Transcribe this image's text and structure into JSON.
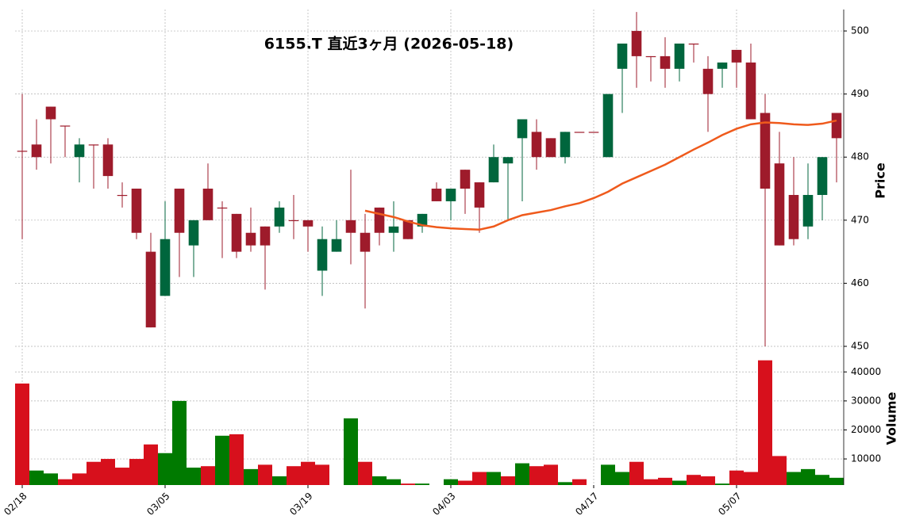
{
  "chart_data": {
    "type": "candlestick",
    "title": "6155.T  直近3ヶ月  (2026-05-18)",
    "categories": [
      "02/18",
      null,
      null,
      null,
      null,
      null,
      null,
      null,
      null,
      null,
      "03/05",
      null,
      null,
      null,
      null,
      null,
      null,
      null,
      null,
      null,
      "03/19",
      null,
      null,
      null,
      null,
      null,
      null,
      null,
      null,
      null,
      "04/03",
      null,
      null,
      null,
      null,
      null,
      null,
      null,
      null,
      null,
      "04/17",
      null,
      null,
      null,
      null,
      null,
      null,
      null,
      null,
      null,
      "05/07",
      null,
      null,
      null,
      null,
      null,
      null,
      null
    ],
    "open": [
      481,
      482,
      488,
      485,
      480,
      482,
      482,
      474,
      475,
      465,
      458,
      475,
      466,
      475,
      472,
      471,
      468,
      469,
      469,
      470,
      470,
      462,
      465,
      470,
      468,
      472,
      468,
      470,
      469,
      475,
      473,
      478,
      476,
      476,
      479,
      483,
      484,
      483,
      480,
      484,
      484,
      480,
      494,
      500,
      496,
      496,
      494,
      498,
      494,
      494,
      497,
      495,
      487,
      479,
      474,
      469,
      474,
      487
    ],
    "high": [
      490,
      486,
      488,
      485,
      483,
      482,
      483,
      476,
      475,
      468,
      473,
      475,
      470,
      479,
      473,
      471,
      472,
      469,
      473,
      474,
      470,
      469,
      470,
      478,
      471,
      472,
      473,
      470,
      471,
      476,
      475,
      478,
      476,
      482,
      480,
      486,
      486,
      483,
      484,
      484,
      484,
      490,
      498,
      503,
      496,
      499,
      498,
      498,
      496,
      495,
      497,
      498,
      490,
      484,
      480,
      479,
      480,
      487
    ],
    "low": [
      467,
      478,
      479,
      480,
      476,
      475,
      475,
      472,
      467,
      453,
      458,
      461,
      461,
      470,
      464,
      464,
      465,
      459,
      468,
      467,
      465,
      458,
      465,
      463,
      456,
      466,
      465,
      467,
      468,
      473,
      470,
      471,
      468,
      476,
      470,
      473,
      478,
      480,
      479,
      484,
      484,
      480,
      487,
      491,
      492,
      491,
      492,
      495,
      484,
      491,
      491,
      486,
      450,
      466,
      466,
      467,
      470,
      476
    ],
    "close": [
      481,
      480,
      486,
      485,
      482,
      482,
      477,
      474,
      468,
      453,
      467,
      468,
      470,
      470,
      472,
      465,
      466,
      466,
      472,
      470,
      469,
      467,
      467,
      468,
      465,
      468,
      469,
      467,
      471,
      473,
      475,
      475,
      472,
      480,
      480,
      486,
      480,
      480,
      484,
      484,
      484,
      490,
      498,
      496,
      496,
      494,
      498,
      498,
      490,
      495,
      495,
      486,
      475,
      466,
      467,
      474,
      480,
      483
    ],
    "up_color": "#00663d",
    "down_color": "#9e1b2b",
    "ma": {
      "color": "#ef5a1c",
      "values": [
        null,
        null,
        null,
        null,
        null,
        null,
        null,
        null,
        null,
        null,
        null,
        null,
        null,
        null,
        null,
        null,
        null,
        null,
        null,
        null,
        null,
        null,
        null,
        null,
        471.5,
        471,
        470.5,
        469.8,
        469.2,
        468.9,
        468.7,
        468.6,
        468.5,
        469,
        470,
        470.8,
        471.2,
        471.6,
        472.2,
        472.7,
        473.5,
        474.5,
        475.8,
        476.8,
        477.8,
        478.8,
        480,
        481.2,
        482.3,
        483.5,
        484.5,
        485.2,
        485.5,
        485.4,
        485.2,
        485.1,
        485.3,
        485.8
      ]
    },
    "ylim": [
      450,
      503.4
    ],
    "yticks": [
      450,
      460,
      470,
      480,
      490,
      500
    ],
    "ylabel": "Price",
    "grid": true,
    "volume": {
      "values": [
        36000,
        6000,
        5000,
        3000,
        5000,
        9000,
        10000,
        7000,
        10000,
        15000,
        12000,
        30000,
        7000,
        7500,
        18000,
        18500,
        6500,
        8000,
        4000,
        7500,
        9000,
        8000,
        1000,
        24000,
        9000,
        4000,
        3000,
        1500,
        1500,
        1000,
        3000,
        2500,
        5500,
        5500,
        4000,
        8500,
        7500,
        8000,
        2000,
        3000,
        1000,
        8000,
        5500,
        9000,
        3000,
        3500,
        2500,
        4500,
        4000,
        1500,
        6000,
        5500,
        44000,
        11000,
        5500,
        6500,
        4500,
        3500
      ],
      "colors": [
        "#d7101c",
        "#007a00",
        "#007a00",
        "#d7101c",
        "#d7101c",
        "#d7101c",
        "#d7101c",
        "#d7101c",
        "#d7101c",
        "#d7101c",
        "#007a00",
        "#007a00",
        "#007a00",
        "#d7101c",
        "#007a00",
        "#d7101c",
        "#007a00",
        "#d7101c",
        "#007a00",
        "#d7101c",
        "#d7101c",
        "#d7101c",
        "#d7101c",
        "#007a00",
        "#d7101c",
        "#007a00",
        "#007a00",
        "#d7101c",
        "#007a00",
        "#007a00",
        "#007a00",
        "#d7101c",
        "#d7101c",
        "#007a00",
        "#d7101c",
        "#007a00",
        "#d7101c",
        "#d7101c",
        "#007a00",
        "#d7101c",
        "#007a00",
        "#007a00",
        "#007a00",
        "#d7101c",
        "#d7101c",
        "#d7101c",
        "#007a00",
        "#d7101c",
        "#d7101c",
        "#007a00",
        "#d7101c",
        "#d7101c",
        "#d7101c",
        "#d7101c",
        "#007a00",
        "#007a00",
        "#007a00",
        "#007a00"
      ],
      "ylim": [
        1000,
        48000
      ],
      "yticks": [
        10000,
        20000,
        30000,
        40000
      ],
      "ylabel": "Volume"
    }
  }
}
